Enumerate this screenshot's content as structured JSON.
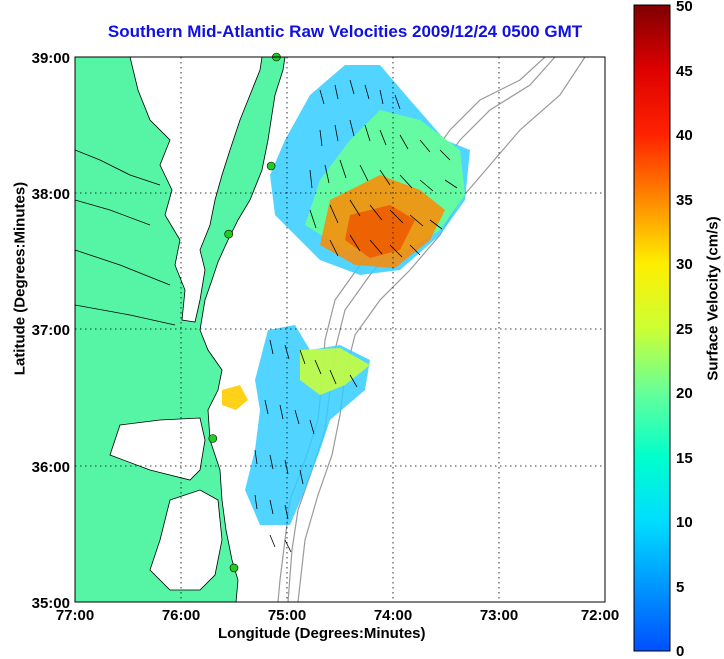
{
  "title": "Southern Mid-Atlantic Raw Velocities 2009/12/24 0500 GMT",
  "axes": {
    "xlabel": "Longitude (Degrees:Minutes)",
    "ylabel": "Latitude (Degrees:Minutes)",
    "x_ticks": [
      "77:00",
      "76:00",
      "75:00",
      "74:00",
      "73:00",
      "72:00"
    ],
    "y_ticks": [
      "39:00",
      "38:00",
      "37:00",
      "36:00",
      "35:00"
    ],
    "x_range": [
      -77,
      -72
    ],
    "y_range": [
      35,
      39
    ],
    "grid": "dotted"
  },
  "colorbar": {
    "label": "Surface Velocity (cm/s)",
    "ticks": [
      "50",
      "45",
      "40",
      "35",
      "30",
      "25",
      "20",
      "15",
      "10",
      "5",
      "0"
    ],
    "range": [
      0,
      50
    ]
  },
  "colors": {
    "land": "#55f5a5",
    "water": "#ffffff",
    "title": "#1010e0",
    "bathymetry": "#9a9a9a",
    "station": "#22cc22"
  },
  "stations": [
    {
      "lon": -75.1,
      "lat": 39.0
    },
    {
      "lon": -75.15,
      "lat": 38.2
    },
    {
      "lon": -75.55,
      "lat": 37.7
    },
    {
      "lon": -75.7,
      "lat": 36.2
    },
    {
      "lon": -75.5,
      "lat": 35.25
    }
  ]
}
